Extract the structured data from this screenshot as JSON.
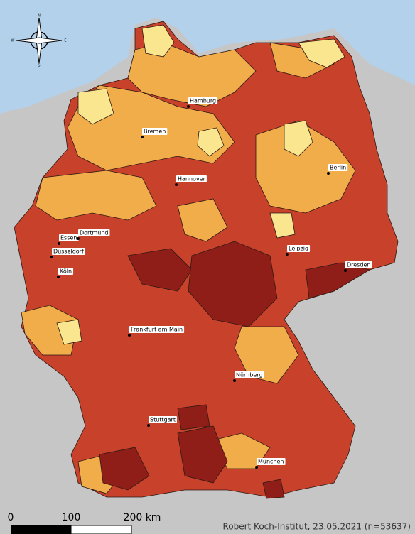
{
  "map": {
    "compass": {
      "labels": [
        "N",
        "E",
        "S",
        "W"
      ]
    },
    "cities": [
      {
        "label": "Hamburg"
      },
      {
        "label": "Bremen"
      },
      {
        "label": "Hannover"
      },
      {
        "label": "Berlin"
      },
      {
        "label": "Essen"
      },
      {
        "label": "Dortmund"
      },
      {
        "label": "Düsseldorf"
      },
      {
        "label": "Köln"
      },
      {
        "label": "Leipzig"
      },
      {
        "label": "Dresden"
      },
      {
        "label": "Frankfurt am Main"
      },
      {
        "label": "Nürnberg"
      },
      {
        "label": "Stuttgart"
      },
      {
        "label": "München"
      }
    ],
    "scale_bar": {
      "labels": [
        "0",
        "100",
        "200 km"
      ]
    },
    "credit": "Robert Koch-Institut, 23.05.2021 (n=53637)"
  }
}
